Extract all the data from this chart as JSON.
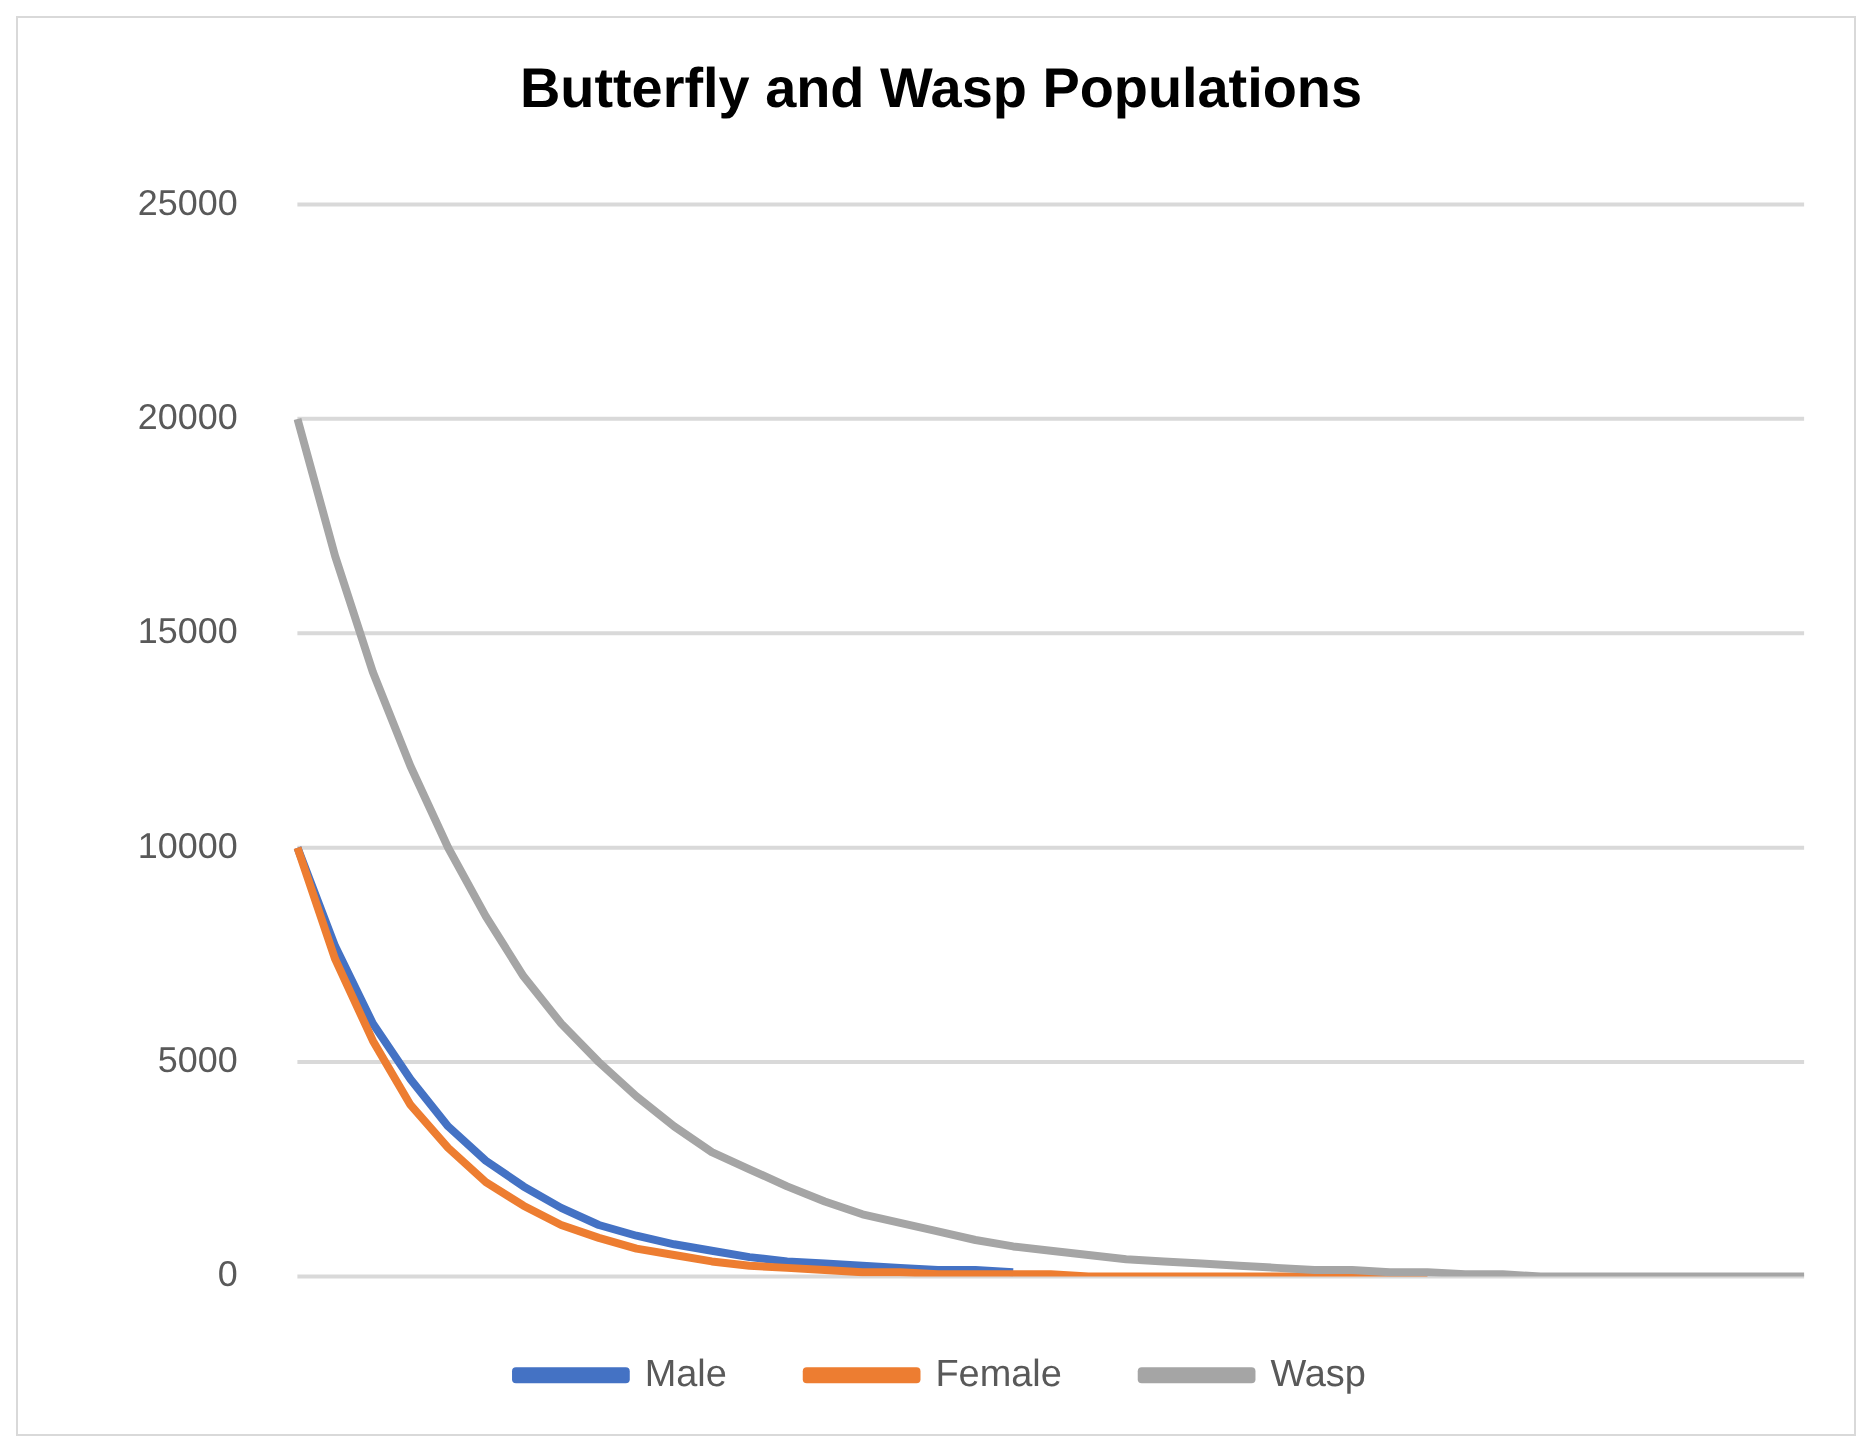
{
  "chart_data": {
    "type": "line",
    "title": "Butterfly and Wasp Populations",
    "categories": [
      null,
      null,
      null,
      null,
      null,
      null,
      null,
      null,
      null,
      null,
      null,
      null,
      null,
      null,
      null,
      null,
      null,
      null,
      null,
      null,
      null,
      null,
      null,
      null,
      null,
      null,
      null,
      null,
      null,
      null,
      null,
      null,
      null,
      null,
      null,
      null,
      null,
      null,
      null,
      null,
      null
    ],
    "series": [
      {
        "name": "Male",
        "color": "#4472c4",
        "values": [
          10000,
          7700,
          5900,
          4600,
          3500,
          2700,
          2100,
          1600,
          1200,
          950,
          750,
          600,
          450,
          350,
          300,
          250,
          200,
          150,
          150,
          100,
          null,
          null,
          null,
          null,
          null,
          null,
          null,
          null,
          null,
          null,
          null,
          null,
          null,
          null,
          null,
          null,
          null,
          null,
          null,
          null,
          null
        ]
      },
      {
        "name": "Female",
        "color": "#ed7d31",
        "values": [
          10000,
          7400,
          5500,
          4000,
          3000,
          2200,
          1650,
          1200,
          900,
          650,
          500,
          350,
          250,
          200,
          150,
          100,
          100,
          50,
          50,
          50,
          50,
          0,
          0,
          0,
          0,
          0,
          0,
          0,
          0,
          0,
          0,
          null,
          null,
          null,
          null,
          null,
          null,
          null,
          null,
          null,
          null
        ]
      },
      {
        "name": "Wasp",
        "color": "#a5a5a5",
        "values": [
          20000,
          16800,
          14100,
          11900,
          10000,
          8400,
          7000,
          5900,
          5000,
          4200,
          3500,
          2900,
          2500,
          2100,
          1750,
          1450,
          1250,
          1050,
          850,
          700,
          600,
          500,
          400,
          350,
          300,
          250,
          200,
          150,
          150,
          100,
          100,
          50,
          50,
          0,
          0,
          0,
          0,
          0,
          0,
          0,
          0
        ]
      }
    ],
    "ylim": [
      0,
      25000
    ],
    "yticks": [
      0,
      5000,
      10000,
      15000,
      20000,
      25000
    ],
    "grid": "y",
    "legend": "bottom",
    "marker": "none",
    "line_style": "solid",
    "tick_labels": "y"
  }
}
